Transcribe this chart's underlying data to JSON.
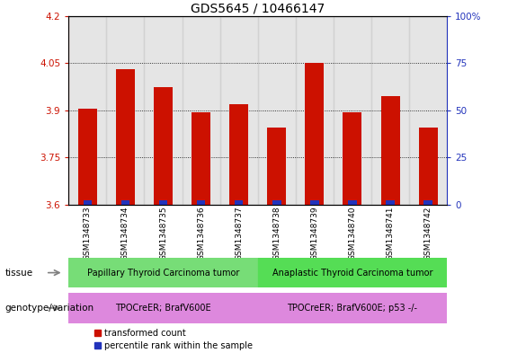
{
  "title": "GDS5645 / 10466147",
  "samples": [
    "GSM1348733",
    "GSM1348734",
    "GSM1348735",
    "GSM1348736",
    "GSM1348737",
    "GSM1348738",
    "GSM1348739",
    "GSM1348740",
    "GSM1348741",
    "GSM1348742"
  ],
  "transformed_counts": [
    3.905,
    4.03,
    3.975,
    3.895,
    3.92,
    3.845,
    4.05,
    3.895,
    3.945,
    3.845
  ],
  "percentile_values": [
    2,
    2,
    2,
    2,
    2,
    1,
    2,
    2,
    2,
    2
  ],
  "ylim": [
    3.6,
    4.2
  ],
  "yticks": [
    3.6,
    3.75,
    3.9,
    4.05,
    4.2
  ],
  "y2ticks": [
    0,
    25,
    50,
    75,
    100
  ],
  "y2labels": [
    "0",
    "25",
    "50",
    "75",
    "100%"
  ],
  "bar_color": "#cc1100",
  "percentile_color": "#2233bb",
  "bar_width": 0.5,
  "grid_color": "black",
  "tissue_groups": [
    {
      "label": "Papillary Thyroid Carcinoma tumor",
      "start": 0,
      "end": 5,
      "color": "#77dd77"
    },
    {
      "label": "Anaplastic Thyroid Carcinoma tumor",
      "start": 5,
      "end": 10,
      "color": "#55dd55"
    }
  ],
  "genotype_groups": [
    {
      "label": "TPOCreER; BrafV600E",
      "start": 0,
      "end": 5,
      "color": "#dd88dd"
    },
    {
      "label": "TPOCreER; BrafV600E; p53 -/-",
      "start": 5,
      "end": 10,
      "color": "#dd88dd"
    }
  ],
  "tissue_row_label": "tissue",
  "genotype_row_label": "genotype/variation",
  "legend_items": [
    {
      "color": "#cc1100",
      "label": "transformed count"
    },
    {
      "color": "#2233bb",
      "label": "percentile rank within the sample"
    }
  ],
  "ylabel_left_color": "#cc1100",
  "ylabel_right_color": "#2233bb",
  "title_fontsize": 10,
  "tick_fontsize": 7.5,
  "sample_fontsize": 6.5,
  "sample_bg_color": "#cccccc",
  "bg_color": "#ffffff"
}
